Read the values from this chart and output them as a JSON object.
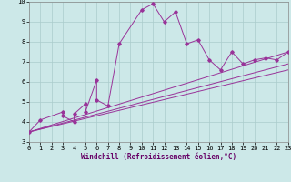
{
  "xlabel": "Windchill (Refroidissement éolien,°C)",
  "xlim": [
    0,
    23
  ],
  "ylim": [
    3,
    10
  ],
  "xticks": [
    0,
    1,
    2,
    3,
    4,
    5,
    6,
    7,
    8,
    9,
    10,
    11,
    12,
    13,
    14,
    15,
    16,
    17,
    18,
    19,
    20,
    21,
    22,
    23
  ],
  "yticks": [
    3,
    4,
    5,
    6,
    7,
    8,
    9,
    10
  ],
  "background_color": "#cce8e8",
  "grid_color": "#aacccc",
  "line_color": "#993399",
  "series": [
    {
      "x": [
        0,
        1,
        3,
        3,
        4,
        4,
        5,
        5,
        6,
        6,
        7,
        8,
        10,
        11,
        12,
        13,
        14,
        15,
        16,
        17,
        18,
        19,
        20,
        21,
        22,
        23
      ],
      "y": [
        3.5,
        4.1,
        4.5,
        4.3,
        4.0,
        4.4,
        4.9,
        4.5,
        6.1,
        5.1,
        4.8,
        7.9,
        9.6,
        9.9,
        9.0,
        9.5,
        7.9,
        8.1,
        7.1,
        6.6,
        7.5,
        6.9,
        7.1,
        7.2,
        7.1,
        7.5
      ]
    },
    {
      "x": [
        0,
        23
      ],
      "y": [
        3.5,
        7.5
      ]
    },
    {
      "x": [
        0,
        23
      ],
      "y": [
        3.5,
        6.9
      ]
    },
    {
      "x": [
        0,
        23
      ],
      "y": [
        3.5,
        6.6
      ]
    }
  ]
}
